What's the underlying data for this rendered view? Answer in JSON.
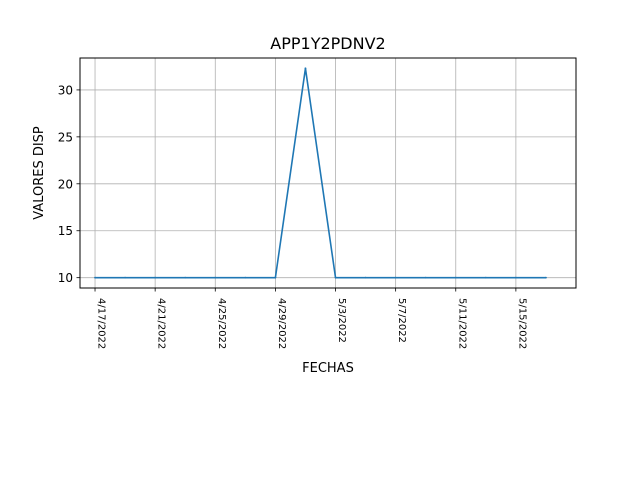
{
  "chart_data": {
    "type": "line",
    "title": "APP1Y2PDNV2",
    "xlabel": "FECHAS",
    "ylabel": "VALORES DISP",
    "x_ticks": [
      "4/17/2022",
      "4/21/2022",
      "4/25/2022",
      "4/29/2022",
      "5/3/2022",
      "5/7/2022",
      "5/11/2022",
      "5/15/2022"
    ],
    "x_range": [
      "4/16/2022",
      "5/19/2022"
    ],
    "y_ticks": [
      10,
      15,
      20,
      25,
      30
    ],
    "ylim": [
      8.9,
      33.4
    ],
    "grid": true,
    "series": [
      {
        "color": "#1f77b4",
        "points": [
          {
            "x": "4/17/2022",
            "y": 10.0
          },
          {
            "x": "4/19/2022",
            "y": 10.0
          },
          {
            "x": "4/21/2022",
            "y": 10.0
          },
          {
            "x": "4/23/2022",
            "y": 10.0
          },
          {
            "x": "4/25/2022",
            "y": 10.0
          },
          {
            "x": "4/27/2022",
            "y": 10.0
          },
          {
            "x": "4/29/2022",
            "y": 10.0
          },
          {
            "x": "5/1/2022",
            "y": 32.3
          },
          {
            "x": "5/3/2022",
            "y": 10.0
          },
          {
            "x": "5/5/2022",
            "y": 10.0
          },
          {
            "x": "5/7/2022",
            "y": 10.0
          },
          {
            "x": "5/9/2022",
            "y": 10.0
          },
          {
            "x": "5/11/2022",
            "y": 10.0
          },
          {
            "x": "5/13/2022",
            "y": 10.0
          },
          {
            "x": "5/15/2022",
            "y": 10.0
          },
          {
            "x": "5/17/2022",
            "y": 10.0
          }
        ]
      }
    ]
  }
}
